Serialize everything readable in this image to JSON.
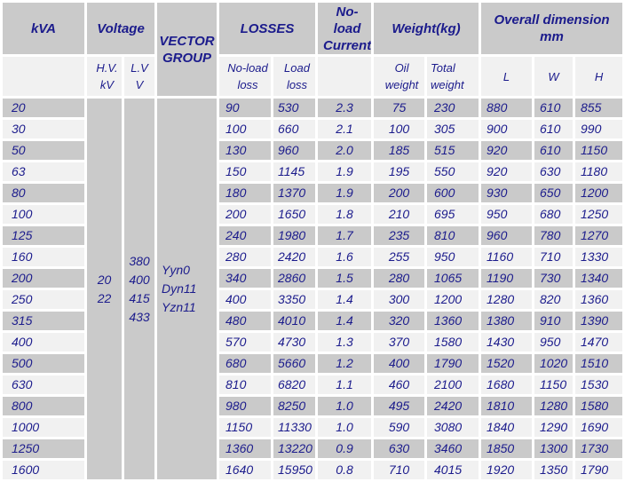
{
  "colors": {
    "header_bg": "#cacaca",
    "row_gray_bg": "#cacaca",
    "row_light_bg": "#f1f1f1",
    "text": "#1b1b8c",
    "page_bg": "#ffffff"
  },
  "header": {
    "kva": "kVA",
    "voltage": "Voltage",
    "vector_group": [
      "VECTOR",
      "GROUP"
    ],
    "losses": "LOSSES",
    "no_load_current": [
      "No-load",
      "Current"
    ],
    "weight": "Weight(kg)",
    "overall_dimension": [
      "Overall dimension",
      "mm"
    ]
  },
  "subheader": {
    "hv": [
      "H.V.",
      "kV"
    ],
    "lv": [
      "L.V",
      "V"
    ],
    "no_load_loss": [
      "No-load",
      "loss"
    ],
    "load_loss": [
      "Load",
      "loss"
    ],
    "oil_weight": [
      "Oil",
      "weight"
    ],
    "total_weight": [
      "Total",
      "weight"
    ],
    "l": "L",
    "w": "W",
    "h": "H"
  },
  "merged": {
    "hv_values": [
      "20",
      "22"
    ],
    "lv_values": [
      "380",
      "400",
      "415",
      "433"
    ],
    "vector_values": [
      "Yyn0",
      "Dyn11",
      "Yzn11"
    ]
  },
  "rows": [
    {
      "kva": "20",
      "no_load_loss": "90",
      "load_loss": "530",
      "no_load_current": "2.3",
      "oil_weight": "75",
      "total_weight": "230",
      "l": "880",
      "w": "610",
      "h": "855"
    },
    {
      "kva": "30",
      "no_load_loss": "100",
      "load_loss": "660",
      "no_load_current": "2.1",
      "oil_weight": "100",
      "total_weight": "305",
      "l": "900",
      "w": "610",
      "h": "990"
    },
    {
      "kva": "50",
      "no_load_loss": "130",
      "load_loss": "960",
      "no_load_current": "2.0",
      "oil_weight": "185",
      "total_weight": "515",
      "l": "920",
      "w": "610",
      "h": "1150"
    },
    {
      "kva": "63",
      "no_load_loss": "150",
      "load_loss": "1145",
      "no_load_current": "1.9",
      "oil_weight": "195",
      "total_weight": "550",
      "l": "920",
      "w": "630",
      "h": "1180"
    },
    {
      "kva": "80",
      "no_load_loss": "180",
      "load_loss": "1370",
      "no_load_current": "1.9",
      "oil_weight": "200",
      "total_weight": "600",
      "l": "930",
      "w": "650",
      "h": "1200"
    },
    {
      "kva": "100",
      "no_load_loss": "200",
      "load_loss": "1650",
      "no_load_current": "1.8",
      "oil_weight": "210",
      "total_weight": "695",
      "l": "950",
      "w": "680",
      "h": "1250"
    },
    {
      "kva": "125",
      "no_load_loss": "240",
      "load_loss": "1980",
      "no_load_current": "1.7",
      "oil_weight": "235",
      "total_weight": "810",
      "l": "960",
      "w": "780",
      "h": "1270"
    },
    {
      "kva": "160",
      "no_load_loss": "280",
      "load_loss": "2420",
      "no_load_current": "1.6",
      "oil_weight": "255",
      "total_weight": "950",
      "l": "1160",
      "w": "710",
      "h": "1330"
    },
    {
      "kva": "200",
      "no_load_loss": "340",
      "load_loss": "2860",
      "no_load_current": "1.5",
      "oil_weight": "280",
      "total_weight": "1065",
      "l": "1190",
      "w": "730",
      "h": "1340"
    },
    {
      "kva": "250",
      "no_load_loss": "400",
      "load_loss": "3350",
      "no_load_current": "1.4",
      "oil_weight": "300",
      "total_weight": "1200",
      "l": "1280",
      "w": "820",
      "h": "1360"
    },
    {
      "kva": "315",
      "no_load_loss": "480",
      "load_loss": "4010",
      "no_load_current": "1.4",
      "oil_weight": "320",
      "total_weight": "1360",
      "l": "1380",
      "w": "910",
      "h": "1390"
    },
    {
      "kva": "400",
      "no_load_loss": "570",
      "load_loss": "4730",
      "no_load_current": "1.3",
      "oil_weight": "370",
      "total_weight": "1580",
      "l": "1430",
      "w": "950",
      "h": "1470"
    },
    {
      "kva": "500",
      "no_load_loss": "680",
      "load_loss": "5660",
      "no_load_current": "1.2",
      "oil_weight": "400",
      "total_weight": "1790",
      "l": "1520",
      "w": "1020",
      "h": "1510"
    },
    {
      "kva": "630",
      "no_load_loss": "810",
      "load_loss": "6820",
      "no_load_current": "1.1",
      "oil_weight": "460",
      "total_weight": "2100",
      "l": "1680",
      "w": "1150",
      "h": "1530"
    },
    {
      "kva": "800",
      "no_load_loss": "980",
      "load_loss": "8250",
      "no_load_current": "1.0",
      "oil_weight": "495",
      "total_weight": "2420",
      "l": "1810",
      "w": "1280",
      "h": "1580"
    },
    {
      "kva": "1000",
      "no_load_loss": "1150",
      "load_loss": "11330",
      "no_load_current": "1.0",
      "oil_weight": "590",
      "total_weight": "3080",
      "l": "1840",
      "w": "1290",
      "h": "1690"
    },
    {
      "kva": "1250",
      "no_load_loss": "1360",
      "load_loss": "13220",
      "no_load_current": "0.9",
      "oil_weight": "630",
      "total_weight": "3460",
      "l": "1850",
      "w": "1300",
      "h": "1730"
    },
    {
      "kva": "1600",
      "no_load_loss": "1640",
      "load_loss": "15950",
      "no_load_current": "0.8",
      "oil_weight": "710",
      "total_weight": "4015",
      "l": "1920",
      "w": "1350",
      "h": "1790"
    }
  ]
}
